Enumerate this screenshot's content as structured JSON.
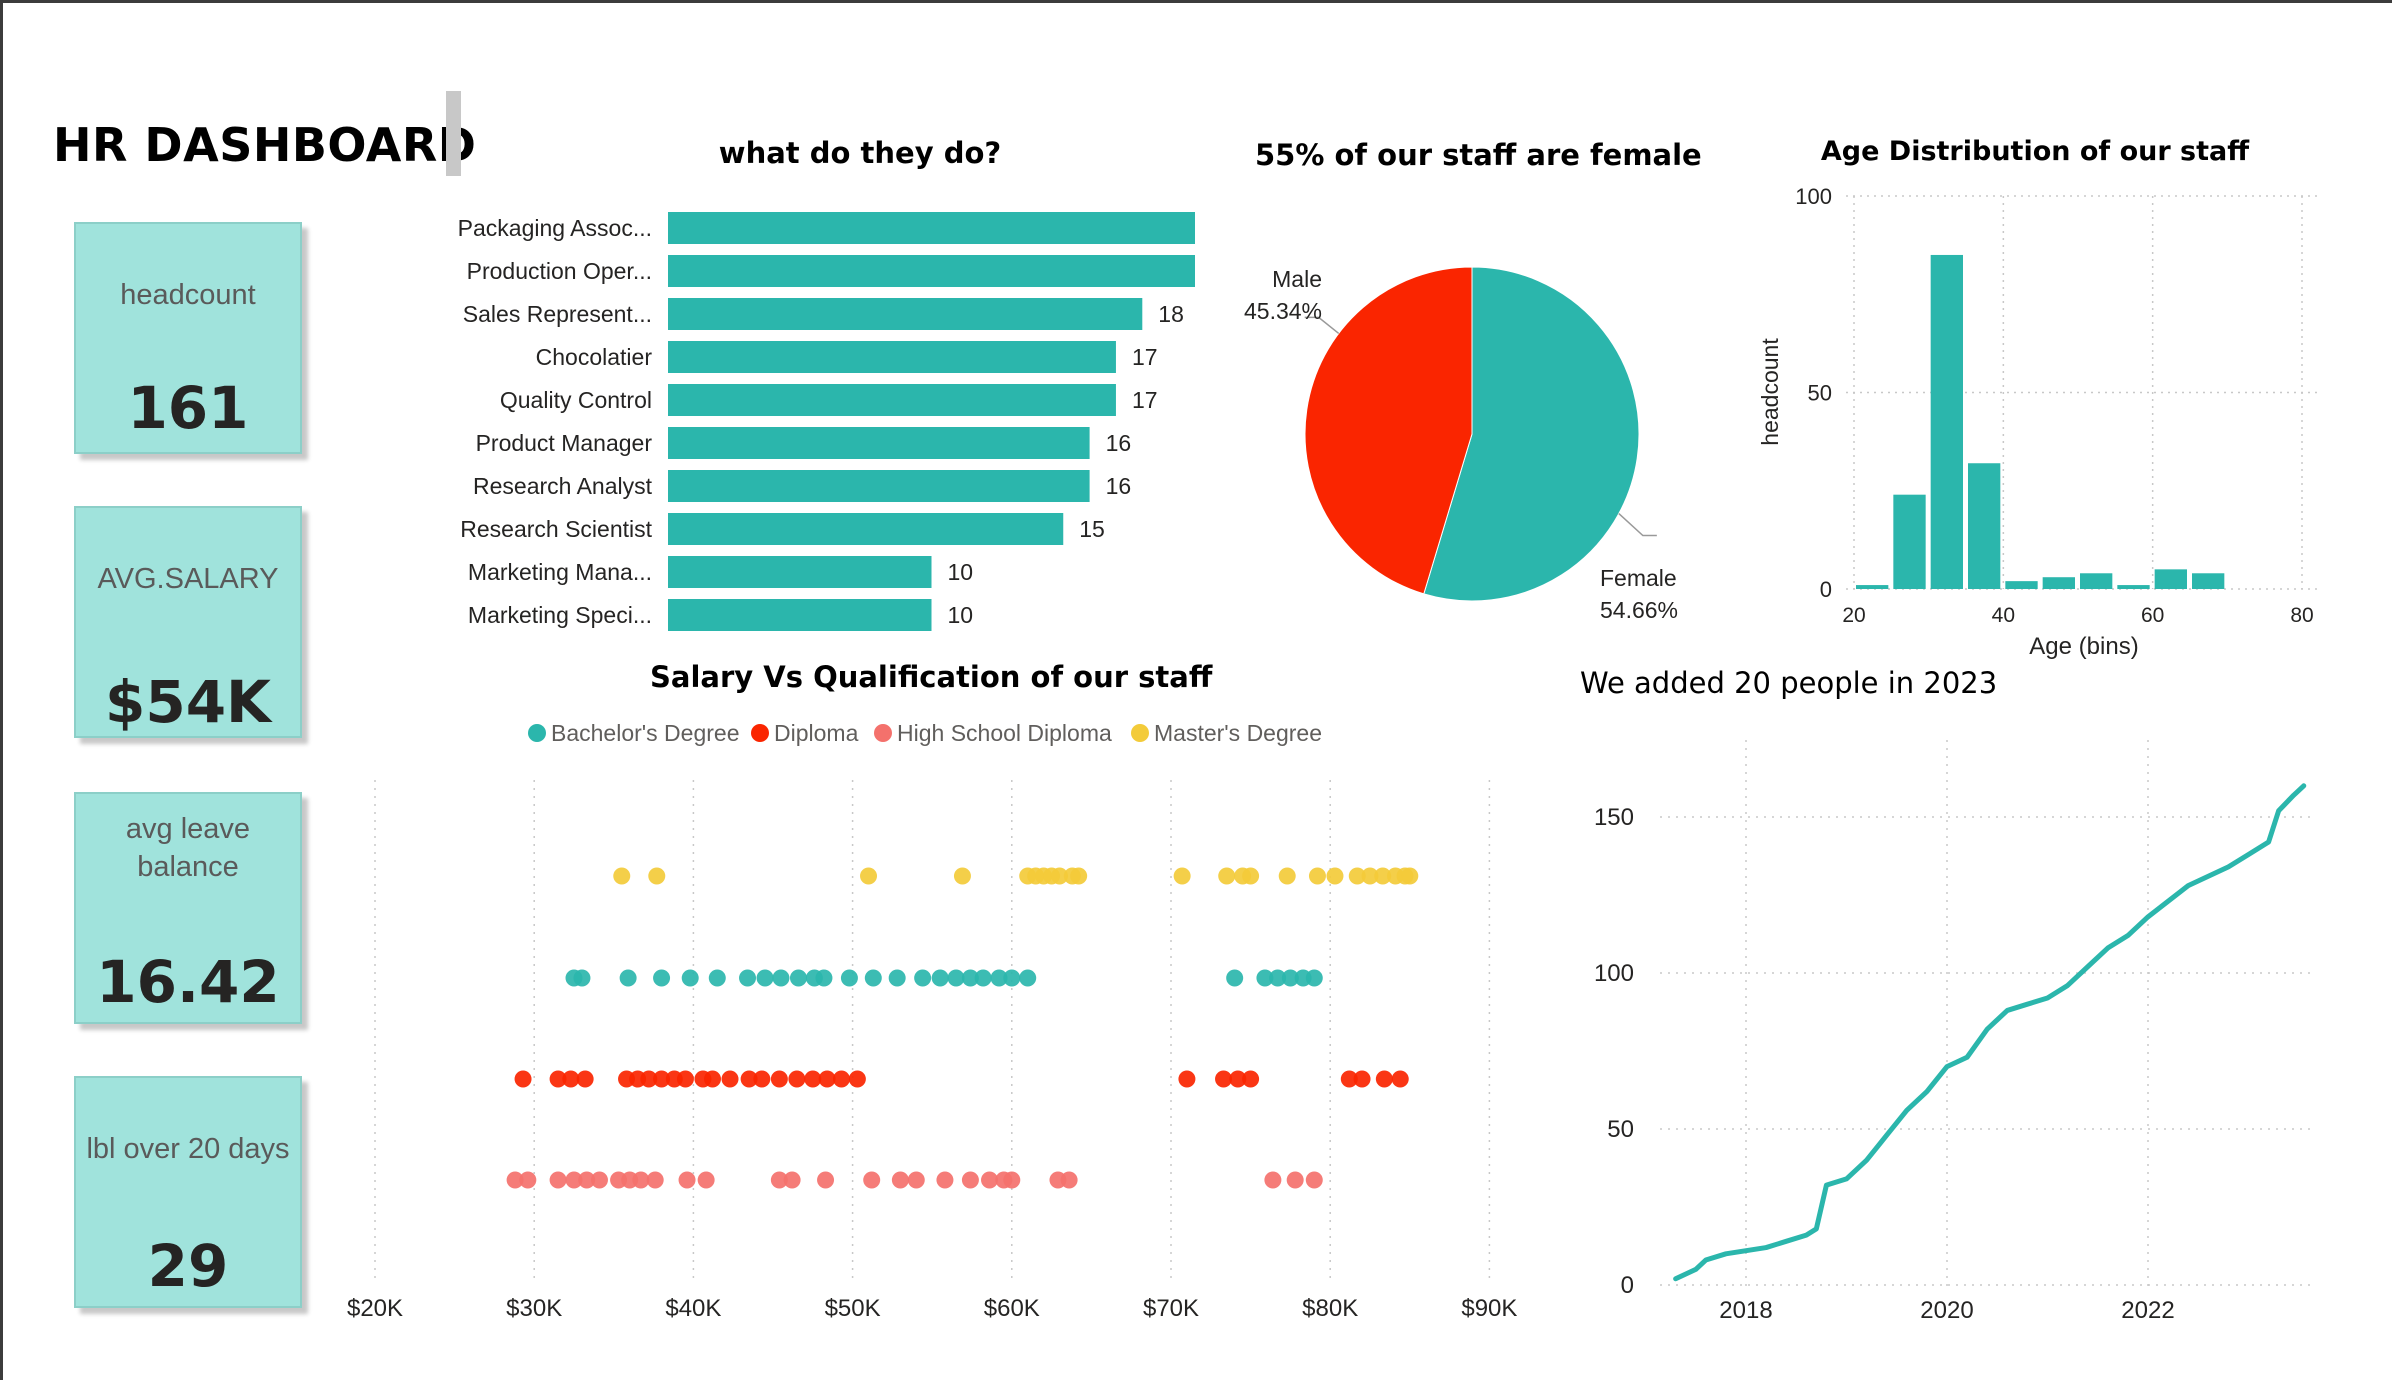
{
  "dashboard": {
    "title": "HR DASHBOARD"
  },
  "cards": [
    {
      "label": "headcount",
      "value": "161"
    },
    {
      "label": "AVG.SALARY",
      "value": "$54K"
    },
    {
      "label": "avg leave balance",
      "value": "16.42"
    },
    {
      "label": "lbl over 20 days",
      "value": "29"
    }
  ],
  "colors": {
    "teal": "#2bb6ac",
    "red": "#fa2500",
    "salmon": "#f4716c",
    "yellow": "#f3cb3a",
    "card": "#a0e3dc",
    "grid": "#c8c8c8",
    "text": "#252423",
    "axis": "#333333"
  },
  "chart_data": [
    {
      "type": "bar",
      "orientation": "horizontal",
      "title": "what do they do?",
      "categories": [
        "Packaging Assoc...",
        "Production Oper...",
        "Sales Represent...",
        "Chocolatier",
        "Quality Control",
        "Product Manager",
        "Research Analyst",
        "Research Scientist",
        "Marketing Mana...",
        "Marketing Speci..."
      ],
      "values": [
        20,
        20,
        18,
        17,
        17,
        16,
        16,
        15,
        10,
        10
      ],
      "data_labels": [
        "",
        "",
        "18",
        "17",
        "17",
        "16",
        "16",
        "15",
        "10",
        "10"
      ],
      "grid": false
    },
    {
      "type": "pie",
      "title": "55% of our staff are female",
      "slices": [
        {
          "label": "Female",
          "value": 54.66,
          "display": "54.66%"
        },
        {
          "label": "Male",
          "value": 45.34,
          "display": "45.34%"
        }
      ]
    },
    {
      "type": "bar",
      "title": "Age Distribution of our staff",
      "xlabel": "Age (bins)",
      "ylabel": "headcount",
      "xlim": [
        20,
        80
      ],
      "ylim": [
        0,
        100
      ],
      "bin_width": 5,
      "x": [
        20,
        25,
        30,
        35,
        40,
        45,
        50,
        55,
        60,
        65
      ],
      "values": [
        1,
        24,
        85,
        32,
        2,
        3,
        4,
        1,
        5,
        4
      ],
      "xticks": [
        "20",
        "40",
        "60",
        "80"
      ],
      "yticks": [
        "0",
        "50",
        "100"
      ],
      "grid": true
    },
    {
      "type": "scatter",
      "title": "Salary Vs Qualification of our staff",
      "legend_position": "top",
      "xlim": [
        20000,
        90000
      ],
      "xticks": [
        "$20K",
        "$30K",
        "$40K",
        "$50K",
        "$60K",
        "$70K",
        "$80K",
        "$90K"
      ],
      "grid": true,
      "series": [
        {
          "name": "Master's Degree",
          "x": [
            35500,
            37700,
            51000,
            56900,
            61000,
            61500,
            62000,
            62500,
            63000,
            63800,
            64200,
            70700,
            73500,
            74500,
            75000,
            77300,
            79200,
            80300,
            81700,
            82500,
            83300,
            84100,
            84700,
            85000
          ]
        },
        {
          "name": "Bachelor's Degree",
          "x": [
            32500,
            33000,
            35900,
            38000,
            39800,
            41500,
            43400,
            44500,
            45500,
            46600,
            47600,
            48200,
            49800,
            51300,
            52800,
            54400,
            55500,
            56500,
            57400,
            58200,
            59200,
            60000,
            61000,
            74000,
            75900,
            76700,
            77500,
            78300,
            79000
          ]
        },
        {
          "name": "Diploma",
          "x": [
            29300,
            31500,
            32300,
            33200,
            35800,
            36500,
            37200,
            38000,
            38800,
            39500,
            40600,
            41200,
            42300,
            43500,
            44300,
            45400,
            46500,
            47500,
            48400,
            49300,
            50300,
            71000,
            73300,
            74200,
            75000,
            81200,
            82000,
            83400,
            84400
          ]
        },
        {
          "name": "High School Diploma",
          "x": [
            28800,
            29600,
            31500,
            32500,
            33300,
            34100,
            35300,
            36000,
            36700,
            37600,
            39600,
            40800,
            45400,
            46200,
            48300,
            51200,
            53000,
            54000,
            55800,
            57400,
            58600,
            59500,
            60000,
            62900,
            63600,
            76400,
            77800,
            79000
          ]
        }
      ],
      "categories": [
        "Master's Degree",
        "Bachelor's Degree",
        "Diploma",
        "High School Diploma"
      ]
    },
    {
      "type": "line",
      "title": "We added 20 people in 2023",
      "xlim": [
        2017.3,
        2023.6
      ],
      "ylim": [
        0,
        165
      ],
      "xticks": [
        "2018",
        "2020",
        "2022"
      ],
      "yticks": [
        "0",
        "50",
        "100",
        "150"
      ],
      "grid": true,
      "series": [
        {
          "x": [
            2017.3,
            2017.5,
            2017.6,
            2017.8,
            2018.0,
            2018.2,
            2018.4,
            2018.6,
            2018.7,
            2018.8,
            2019.0,
            2019.2,
            2019.4,
            2019.6,
            2019.8,
            2020.0,
            2020.2,
            2020.4,
            2020.6,
            2020.8,
            2021.0,
            2021.2,
            2021.4,
            2021.6,
            2021.8,
            2022.0,
            2022.2,
            2022.4,
            2022.6,
            2022.8,
            2023.0,
            2023.1,
            2023.2,
            2023.3,
            2023.45,
            2023.55
          ],
          "values": [
            2,
            5,
            8,
            10,
            11,
            12,
            14,
            16,
            18,
            32,
            34,
            40,
            48,
            56,
            62,
            70,
            73,
            82,
            88,
            90,
            92,
            96,
            102,
            108,
            112,
            118,
            123,
            128,
            131,
            134,
            138,
            140,
            142,
            152,
            157,
            160
          ]
        }
      ]
    }
  ]
}
